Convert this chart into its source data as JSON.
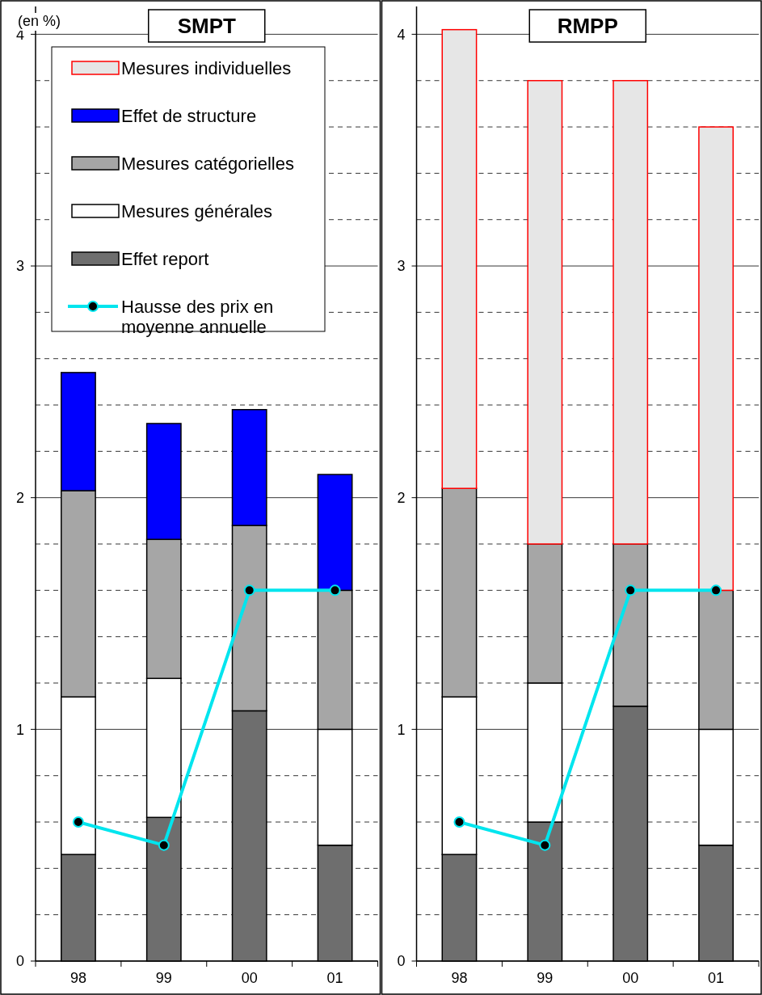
{
  "chart_data": [
    {
      "type": "bar",
      "title": "SMPT",
      "ylabel": "(en %)",
      "categories": [
        "98",
        "99",
        "00",
        "01"
      ],
      "stacked": true,
      "ylim": [
        0,
        4.12
      ],
      "yticks": [
        0,
        {
          "value": 0.2,
          "label": null
        },
        {
          "value": 0.4,
          "label": null
        },
        {
          "value": 0.6,
          "label": null
        },
        {
          "value": 0.8,
          "label": null
        },
        1,
        {
          "value": 1.2,
          "label": null
        },
        {
          "value": 1.4,
          "label": null
        },
        {
          "value": 1.6,
          "label": null
        },
        {
          "value": 1.8,
          "label": null
        },
        2,
        {
          "value": 2.2,
          "label": null
        },
        {
          "value": 2.4,
          "label": null
        },
        {
          "value": 2.6,
          "label": null
        },
        {
          "value": 2.8,
          "label": null
        },
        3,
        {
          "value": 3.2,
          "label": null
        },
        {
          "value": 3.4,
          "label": null
        },
        {
          "value": 3.6,
          "label": null
        },
        {
          "value": 3.8,
          "label": null
        },
        4
      ],
      "grid": "y",
      "legend": "top left",
      "series": [
        {
          "name": "Effet report",
          "color": "#6e6e6e",
          "values": [
            0.46,
            0.62,
            1.08,
            0.5
          ]
        },
        {
          "name": "Mesures générales",
          "color": "#ffffff",
          "values": [
            0.68,
            0.6,
            null,
            0.5
          ]
        },
        {
          "name": "Mesures catégorielles",
          "color": "#a6a6a6",
          "values": [
            0.89,
            0.6,
            0.8,
            0.6
          ]
        },
        {
          "name": "Effet de structure",
          "color": "#0000ff",
          "values": [
            0.51,
            0.5,
            0.5,
            0.5
          ]
        },
        {
          "name": "Mesures individuelles",
          "color": "#e6e6e6",
          "values": [
            null,
            null,
            null,
            null
          ]
        },
        {
          "name": "Hausse des prix en moyenne annuelle",
          "type": "line",
          "color": "#00e5ee",
          "marker": "circle",
          "values": [
            0.6,
            0.5,
            1.6,
            1.6
          ]
        }
      ]
    },
    {
      "type": "bar",
      "title": "RMPP",
      "categories": [
        "98",
        "99",
        "00",
        "01"
      ],
      "stacked": true,
      "ylim": [
        0,
        4.12
      ],
      "yticks": [
        0,
        {
          "value": 0.2,
          "label": null
        },
        {
          "value": 0.4,
          "label": null
        },
        {
          "value": 0.6,
          "label": null
        },
        {
          "value": 0.8,
          "label": null
        },
        1,
        {
          "value": 1.2,
          "label": null
        },
        {
          "value": 1.4,
          "label": null
        },
        {
          "value": 1.6,
          "label": null
        },
        {
          "value": 1.8,
          "label": null
        },
        2,
        {
          "value": 2.2,
          "label": null
        },
        {
          "value": 2.4,
          "label": null
        },
        {
          "value": 2.6,
          "label": null
        },
        {
          "value": 2.8,
          "label": null
        },
        3,
        {
          "value": 3.2,
          "label": null
        },
        {
          "value": 3.4,
          "label": null
        },
        {
          "value": 3.6,
          "label": null
        },
        {
          "value": 3.8,
          "label": null
        },
        4
      ],
      "grid": "y",
      "series": [
        {
          "color": "#6e6e6e",
          "values": [
            0.46,
            0.6,
            1.1,
            0.5
          ]
        },
        {
          "color": "#ffffff",
          "values": [
            0.68,
            0.6,
            null,
            0.5
          ]
        },
        {
          "color": "#a6a6a6",
          "values": [
            0.9,
            0.6,
            0.7,
            0.6
          ]
        },
        {
          "color": "#e6e6e6",
          "values": [
            1.98,
            2.0,
            2.0,
            2.0
          ]
        },
        {
          "type": "line",
          "color": "#00e5ee",
          "marker": "circle",
          "values": [
            0.6,
            0.5,
            1.6,
            1.6
          ]
        }
      ]
    }
  ]
}
